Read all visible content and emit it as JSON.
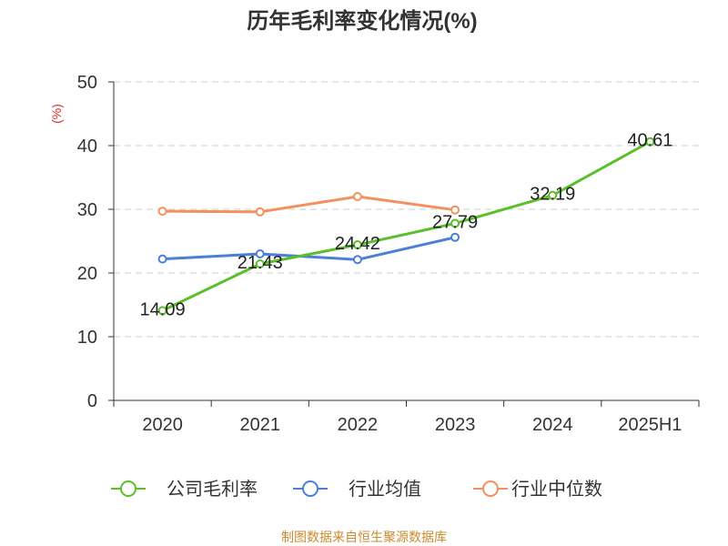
{
  "source_note": "制图数据来自恒生聚源数据库",
  "colors": {
    "title": "#333333",
    "ylabel": "#e0302a",
    "source_note": "#c98b2f",
    "grid": "#cccccc"
  },
  "chart_data": {
    "type": "line",
    "title": "历年毛利率变化情况(%)",
    "xlabel": "",
    "ylabel": "(%)",
    "categories": [
      "2020",
      "2021",
      "2022",
      "2023",
      "2024",
      "2025H1"
    ],
    "ylim": [
      0,
      50
    ],
    "yticks": [
      0,
      10,
      20,
      30,
      40,
      50
    ],
    "grid": true,
    "legend_position": "bottom",
    "series": [
      {
        "name": "公司毛利率",
        "color": "#5bbf2b",
        "values": [
          14.09,
          21.43,
          24.42,
          27.79,
          32.19,
          40.61
        ],
        "data_labels": true
      },
      {
        "name": "行业均值",
        "color": "#4b7fd9",
        "values": [
          22.2,
          23.0,
          22.1,
          25.6,
          null,
          null
        ],
        "data_labels": false
      },
      {
        "name": "行业中位数",
        "color": "#f58f5e",
        "values": [
          29.7,
          29.6,
          32.0,
          29.9,
          null,
          null
        ],
        "data_labels": false
      }
    ]
  }
}
